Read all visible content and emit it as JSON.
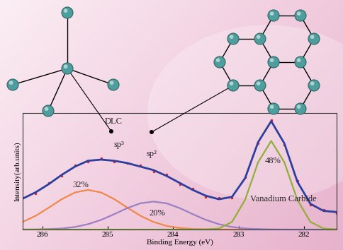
{
  "chart_data": {
    "type": "line",
    "x_label": "Binding Energy (eV)",
    "y_label": "Intensity(arb.units)",
    "x": [
      286.3,
      286.1,
      285.9,
      285.7,
      285.5,
      285.3,
      285.1,
      284.9,
      284.7,
      284.5,
      284.3,
      284.1,
      283.9,
      283.7,
      283.5,
      283.3,
      283.1,
      282.9,
      282.7,
      282.5,
      282.3,
      282.1,
      281.9,
      281.7,
      281.5
    ],
    "xlim": [
      286.3,
      281.5
    ],
    "xticks": [
      286,
      285,
      284,
      283,
      282
    ],
    "ylim": [
      0,
      1
    ],
    "yticks": [],
    "tick_labels": "x",
    "series": [
      {
        "color": "#f0884a",
        "line_style": "solid",
        "values": [
          0.065,
          0.118,
          0.188,
          0.261,
          0.318,
          0.34,
          0.318,
          0.261,
          0.188,
          0.118,
          0.065,
          0.031,
          0.013,
          0.005,
          0.002,
          0,
          0,
          0,
          0,
          0,
          0,
          0,
          0,
          0,
          0
        ]
      },
      {
        "color": "#9b7fc4",
        "line_style": "solid",
        "values": [
          0.0,
          0.001,
          0.004,
          0.009,
          0.022,
          0.046,
          0.083,
          0.132,
          0.184,
          0.225,
          0.24,
          0.225,
          0.184,
          0.132,
          0.083,
          0.046,
          0.022,
          0.009,
          0.004,
          0.001,
          0,
          0,
          0,
          0,
          0
        ]
      },
      {
        "color": "#8fae3a",
        "line_style": "solid",
        "values": [
          0,
          0,
          0,
          0,
          0,
          0,
          0,
          0,
          0,
          0,
          0,
          0,
          0,
          0,
          0.001,
          0.009,
          0.065,
          0.254,
          0.578,
          0.76,
          0.578,
          0.254,
          0.065,
          0.009,
          0.001
        ]
      },
      {
        "color": "#e02020",
        "line_style": "none",
        "marker": "dot",
        "values": [
          0.27,
          0.31,
          0.4,
          0.46,
          0.55,
          0.58,
          0.61,
          0.58,
          0.57,
          0.55,
          0.5,
          0.47,
          0.39,
          0.35,
          0.28,
          0.27,
          0.27,
          0.45,
          0.74,
          0.94,
          0.73,
          0.42,
          0.21,
          0.17,
          0.14
        ]
      },
      {
        "color": "#2c3f9e",
        "line_style": "solid",
        "values": [
          0.265,
          0.32,
          0.39,
          0.47,
          0.54,
          0.59,
          0.6,
          0.59,
          0.57,
          0.54,
          0.51,
          0.46,
          0.4,
          0.34,
          0.29,
          0.26,
          0.28,
          0.44,
          0.75,
          0.93,
          0.74,
          0.41,
          0.22,
          0.16,
          0.15
        ]
      }
    ],
    "annotations": [
      "DLC",
      "sp³",
      "sp²",
      "32%",
      "20%",
      "48%",
      "Vanadium Carbide"
    ]
  }
}
